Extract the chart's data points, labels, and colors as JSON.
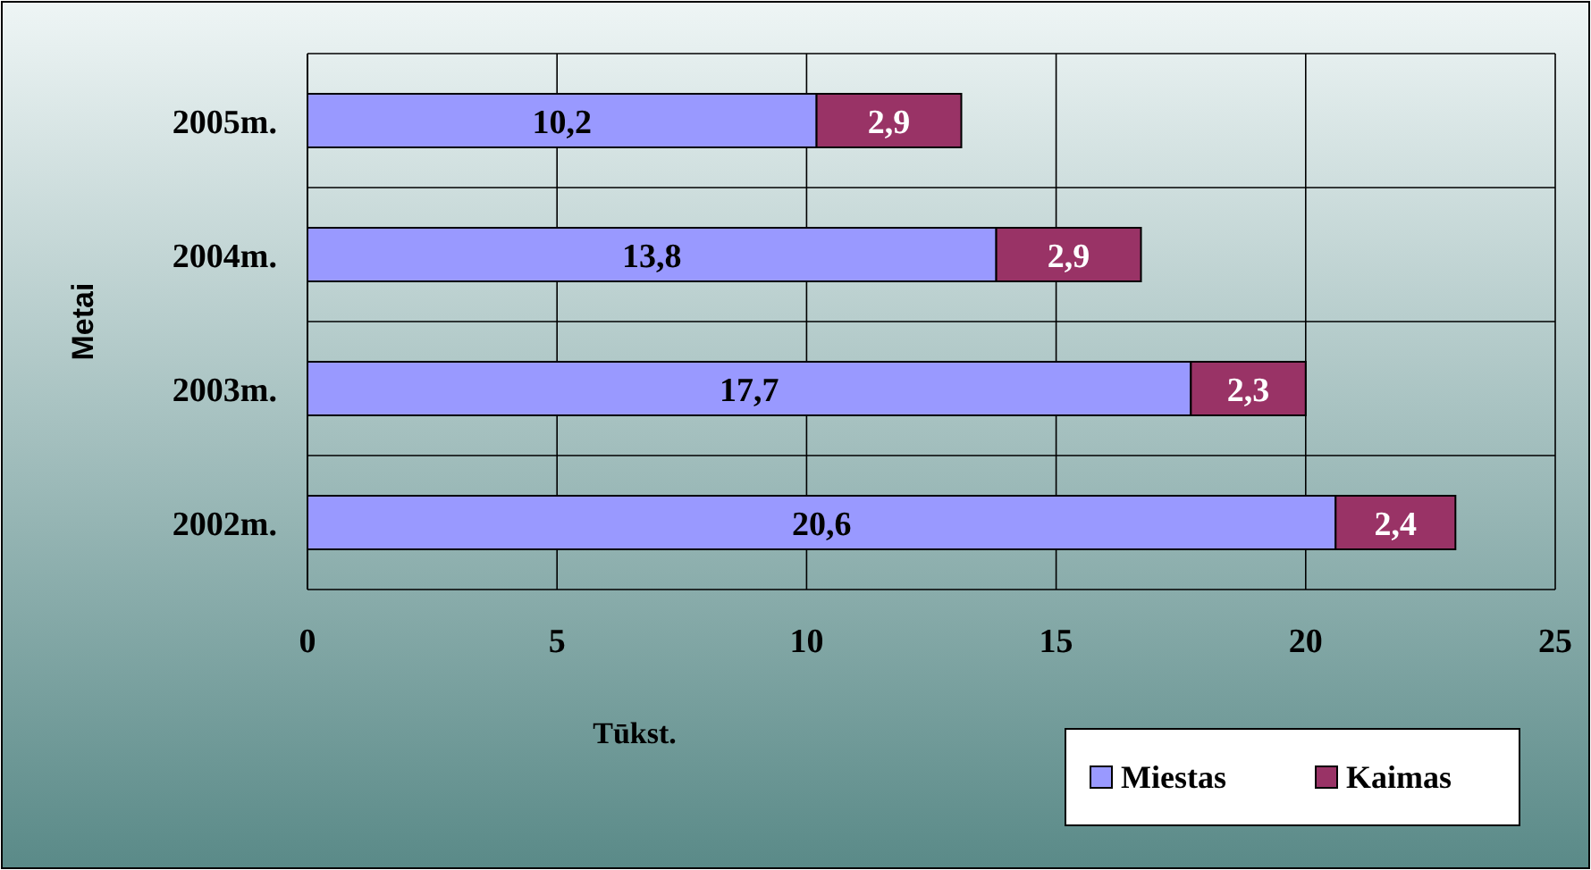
{
  "chart_data": {
    "type": "bar",
    "orientation": "horizontal",
    "stacked": true,
    "ylabel": "Metai",
    "xlabel": "Tūkst.",
    "categories": [
      "2005m.",
      "2004m.",
      "2003m.",
      "2002m."
    ],
    "series": [
      {
        "name": "Miestas",
        "color": "#9999ff",
        "values": [
          10.2,
          13.8,
          17.7,
          20.6
        ],
        "value_labels": [
          "10,2",
          "13,8",
          "17,7",
          "20,6"
        ]
      },
      {
        "name": "Kaimas",
        "color": "#993366",
        "values": [
          2.9,
          2.9,
          2.3,
          2.4
        ],
        "value_labels": [
          "2,9",
          "2,9",
          "2,3",
          "2,4"
        ]
      }
    ],
    "xlim": [
      0,
      25
    ],
    "xticks": [
      0,
      5,
      10,
      15,
      20,
      25
    ],
    "grid": true,
    "legend": "bottom right"
  }
}
